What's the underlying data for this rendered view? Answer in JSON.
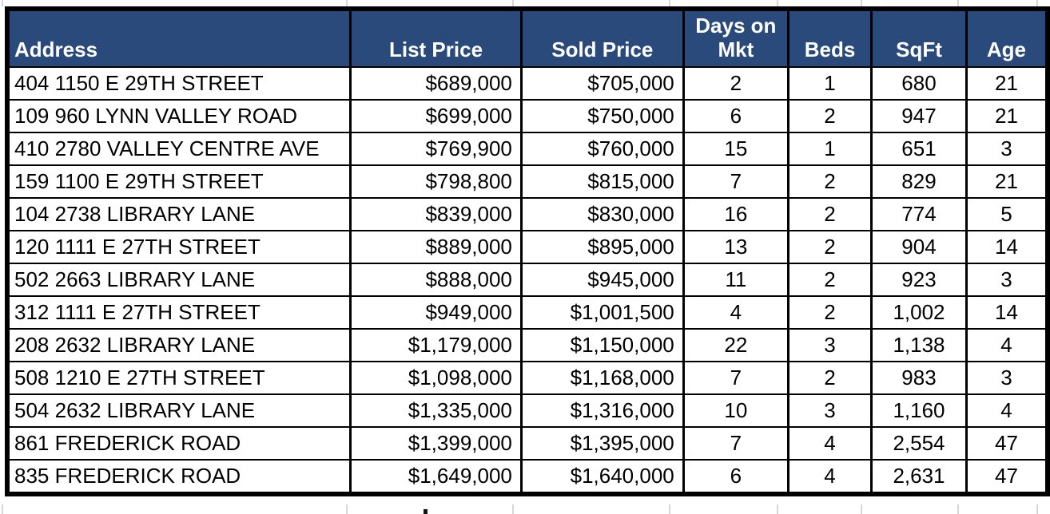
{
  "sheet": {
    "columns": [
      {
        "label": "Address"
      },
      {
        "label": "List Price"
      },
      {
        "label": "Sold Price"
      },
      {
        "label": "Days on Mkt"
      },
      {
        "label": "Beds"
      },
      {
        "label": "SqFt"
      },
      {
        "label": "Age"
      }
    ],
    "rows": [
      [
        "404 1150 E 29TH STREET",
        "$689,000",
        "$705,000",
        "2",
        "1",
        "680",
        "21"
      ],
      [
        "109 960 LYNN VALLEY ROAD",
        "$699,000",
        "$750,000",
        "6",
        "2",
        "947",
        "21"
      ],
      [
        "410 2780 VALLEY CENTRE AVE",
        "$769,900",
        "$760,000",
        "15",
        "1",
        "651",
        "3"
      ],
      [
        "159 1100 E 29TH STREET",
        "$798,800",
        "$815,000",
        "7",
        "2",
        "829",
        "21"
      ],
      [
        "104 2738 LIBRARY LANE",
        "$839,000",
        "$830,000",
        "16",
        "2",
        "774",
        "5"
      ],
      [
        "120 1111 E 27TH STREET",
        "$889,000",
        "$895,000",
        "13",
        "2",
        "904",
        "14"
      ],
      [
        "502 2663 LIBRARY LANE",
        "$888,000",
        "$945,000",
        "11",
        "2",
        "923",
        "3"
      ],
      [
        "312 1111 E 27TH STREET",
        "$949,000",
        "$1,001,500",
        "4",
        "2",
        "1,002",
        "14"
      ],
      [
        "208 2632 LIBRARY LANE",
        "$1,179,000",
        "$1,150,000",
        "22",
        "3",
        "1,138",
        "4"
      ],
      [
        "508 1210 E 27TH STREET",
        "$1,098,000",
        "$1,168,000",
        "7",
        "2",
        "983",
        "3"
      ],
      [
        "504 2632 LIBRARY LANE",
        "$1,335,000",
        "$1,316,000",
        "10",
        "3",
        "1,160",
        "4"
      ],
      [
        "861 FREDERICK ROAD",
        "$1,399,000",
        "$1,395,000",
        "7",
        "4",
        "2,554",
        "47"
      ],
      [
        "835 FREDERICK ROAD",
        "$1,649,000",
        "$1,640,000",
        "6",
        "4",
        "2,631",
        "47"
      ]
    ],
    "colors": {
      "header_bg": "#2A4A7B",
      "header_text": "#FFFFFF",
      "cell_text": "#000000",
      "border": "#000000",
      "gridline": "#D6D6D6"
    }
  }
}
